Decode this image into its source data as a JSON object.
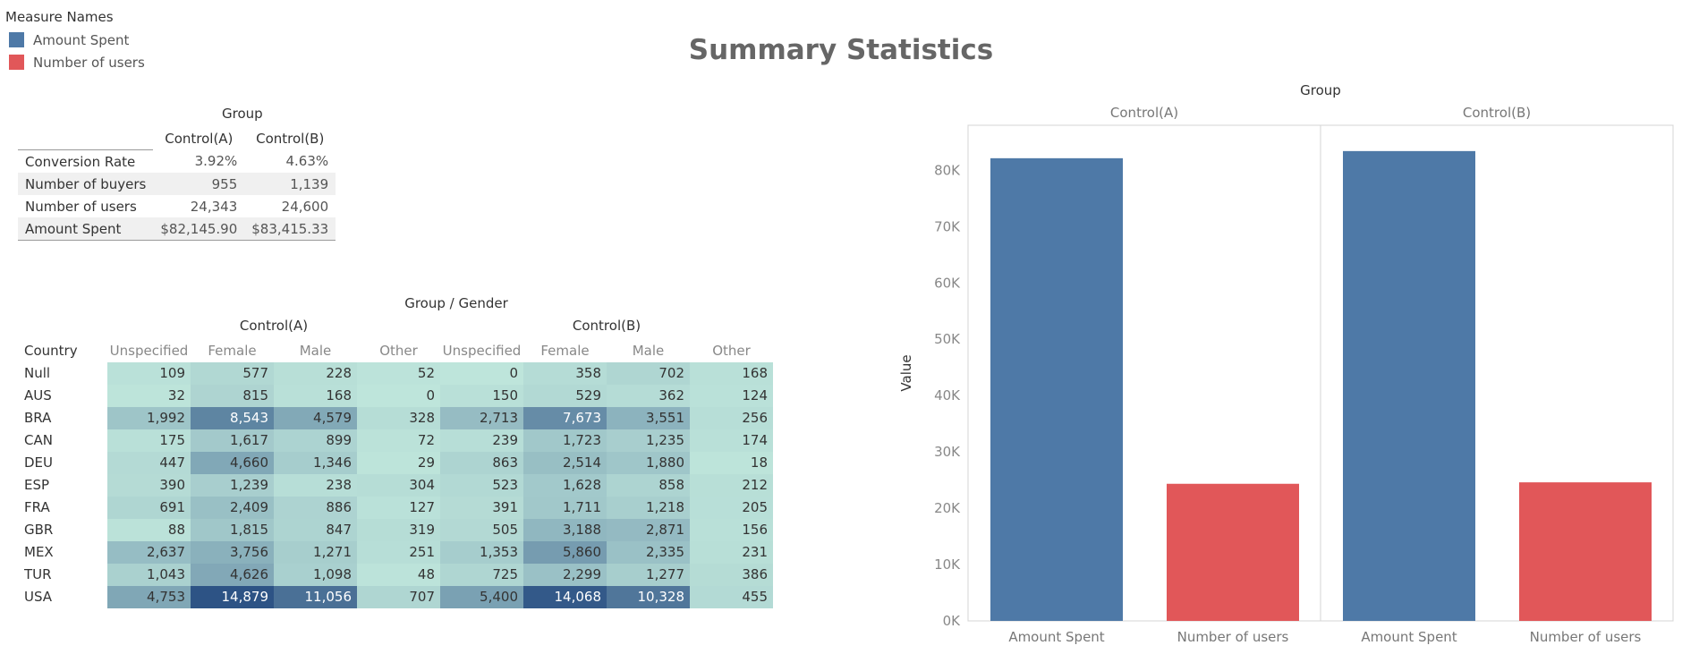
{
  "legend": {
    "title": "Measure Names",
    "items": [
      {
        "label": "Amount Spent",
        "color": "#4e79a7"
      },
      {
        "label": "Number of users",
        "color": "#e15759"
      }
    ]
  },
  "title": "Summary Statistics",
  "summary_table": {
    "group_label": "Group",
    "columns": [
      "Control(A)",
      "Control(B)"
    ],
    "rows": [
      {
        "label": "Conversion Rate",
        "values": [
          "3.92%",
          "4.63%"
        ]
      },
      {
        "label": "Number of buyers",
        "values": [
          "955",
          "1,139"
        ]
      },
      {
        "label": "Number of users",
        "values": [
          "24,343",
          "24,600"
        ]
      },
      {
        "label": "Amount Spent",
        "values": [
          "$82,145.90",
          "$83,415.33"
        ]
      }
    ]
  },
  "heatmap": {
    "header": "Group  /  Gender",
    "groups": [
      "Control(A)",
      "Control(B)"
    ],
    "row_header": "Country",
    "genders": [
      "Unspecified",
      "Female",
      "Male",
      "Other"
    ],
    "rows": [
      {
        "country": "Null",
        "values": [
          109,
          577,
          228,
          52,
          0,
          358,
          702,
          168
        ]
      },
      {
        "country": "AUS",
        "values": [
          32,
          815,
          168,
          0,
          150,
          529,
          362,
          124
        ]
      },
      {
        "country": "BRA",
        "values": [
          1992,
          8543,
          4579,
          328,
          2713,
          7673,
          3551,
          256
        ]
      },
      {
        "country": "CAN",
        "values": [
          175,
          1617,
          899,
          72,
          239,
          1723,
          1235,
          174
        ]
      },
      {
        "country": "DEU",
        "values": [
          447,
          4660,
          1346,
          29,
          863,
          2514,
          1880,
          18
        ]
      },
      {
        "country": "ESP",
        "values": [
          390,
          1239,
          238,
          304,
          523,
          1628,
          858,
          212
        ]
      },
      {
        "country": "FRA",
        "values": [
          691,
          2409,
          886,
          127,
          391,
          1711,
          1218,
          205
        ]
      },
      {
        "country": "GBR",
        "values": [
          88,
          1815,
          847,
          319,
          505,
          3188,
          2871,
          156
        ]
      },
      {
        "country": "MEX",
        "values": [
          2637,
          3756,
          1271,
          251,
          1353,
          5860,
          2335,
          231
        ]
      },
      {
        "country": "TUR",
        "values": [
          1043,
          4626,
          1098,
          48,
          725,
          2299,
          1277,
          386
        ]
      },
      {
        "country": "USA",
        "values": [
          4753,
          14879,
          11056,
          707,
          5400,
          14068,
          10328,
          455
        ]
      }
    ]
  },
  "chart_data": {
    "type": "bar",
    "title": "",
    "group_label": "Group",
    "panels": [
      "Control(A)",
      "Control(B)"
    ],
    "categories": [
      "Amount Spent",
      "Number of users"
    ],
    "series": [
      {
        "name": "Control(A)",
        "values": [
          82145.9,
          24343
        ]
      },
      {
        "name": "Control(B)",
        "values": [
          83415.33,
          24600
        ]
      }
    ],
    "ylabel": "Value",
    "ylim": [
      0,
      88000
    ],
    "yticks": [
      0,
      10000,
      20000,
      30000,
      40000,
      50000,
      60000,
      70000,
      80000
    ],
    "ytick_labels": [
      "0K",
      "10K",
      "20K",
      "30K",
      "40K",
      "50K",
      "60K",
      "70K",
      "80K"
    ],
    "colors": [
      "#4e79a7",
      "#e15759"
    ]
  }
}
